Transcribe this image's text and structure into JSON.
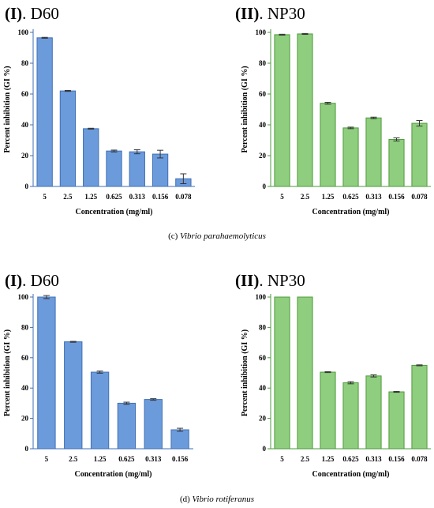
{
  "colors": {
    "blue_fill": "#6C9BDC",
    "blue_stroke": "#3F6FB5",
    "green_fill": "#8FCE7E",
    "green_stroke": "#4E9A3C"
  },
  "captions": {
    "c": {
      "label": "(c) ",
      "organism": "Vibrio parahaemolyticus"
    },
    "d": {
      "label": "(d) ",
      "organism": "Vibrio rotiferanus"
    }
  },
  "chart_data": [
    {
      "type": "bar",
      "panel_roman": "(I)",
      "panel_name": ". D60",
      "categories": [
        "5",
        "2.5",
        "1.25",
        "0.625",
        "0.313",
        "0.156",
        "0.078"
      ],
      "values": [
        96.5,
        62,
        37.5,
        23,
        22.5,
        21,
        5
      ],
      "errors": [
        0.3,
        0.3,
        0.3,
        0.6,
        1.3,
        2.5,
        3.2
      ],
      "xlabel": "Concentration (mg/ml)",
      "ylabel": "Percent inhibition (GI %)",
      "ylim": [
        0,
        100
      ],
      "yticks": [
        0,
        20,
        40,
        60,
        80,
        100
      ],
      "color": "blue"
    },
    {
      "type": "bar",
      "panel_roman": "(II)",
      "panel_name": ". NP30",
      "categories": [
        "5",
        "2.5",
        "1.25",
        "0.625",
        "0.313",
        "0.156",
        "0.078"
      ],
      "values": [
        98.5,
        99,
        54,
        38,
        44.5,
        30.5,
        41
      ],
      "errors": [
        0.3,
        0.3,
        0.6,
        0.5,
        0.5,
        1,
        1.8
      ],
      "xlabel": "Concentration (mg/ml)",
      "ylabel": "Percent inhibition (GI %)",
      "ylim": [
        0,
        100
      ],
      "yticks": [
        0,
        20,
        40,
        60,
        80,
        100
      ],
      "color": "green"
    },
    {
      "type": "bar",
      "panel_roman": "(I)",
      "panel_name": ". D60",
      "categories": [
        "5",
        "2.5",
        "1.25",
        "0.625",
        "0.313",
        "0.156"
      ],
      "values": [
        100,
        70.5,
        50.5,
        30,
        32.5,
        12.5
      ],
      "errors": [
        1,
        0.3,
        0.7,
        0.7,
        0.5,
        1
      ],
      "xlabel": "Concentration (mg/ml)",
      "ylabel": "Percent inhibition (GI %)",
      "ylim": [
        0,
        100
      ],
      "yticks": [
        0,
        20,
        40,
        60,
        80,
        100
      ],
      "color": "blue"
    },
    {
      "type": "bar",
      "panel_roman": "(II)",
      "panel_name": ". NP30",
      "categories": [
        "5",
        "2.5",
        "1.25",
        "0.625",
        "0.313",
        "0.156",
        "0.078"
      ],
      "values": [
        100,
        100,
        50.5,
        43.5,
        48,
        37.5,
        55
      ],
      "errors": [
        0,
        0,
        0.3,
        0.7,
        0.7,
        0.3,
        0.3
      ],
      "xlabel": "Concentration (mg/ml)",
      "ylabel": "Percent inhibition (GI %)",
      "ylim": [
        0,
        100
      ],
      "yticks": [
        0,
        20,
        40,
        60,
        80,
        100
      ],
      "color": "green"
    }
  ]
}
